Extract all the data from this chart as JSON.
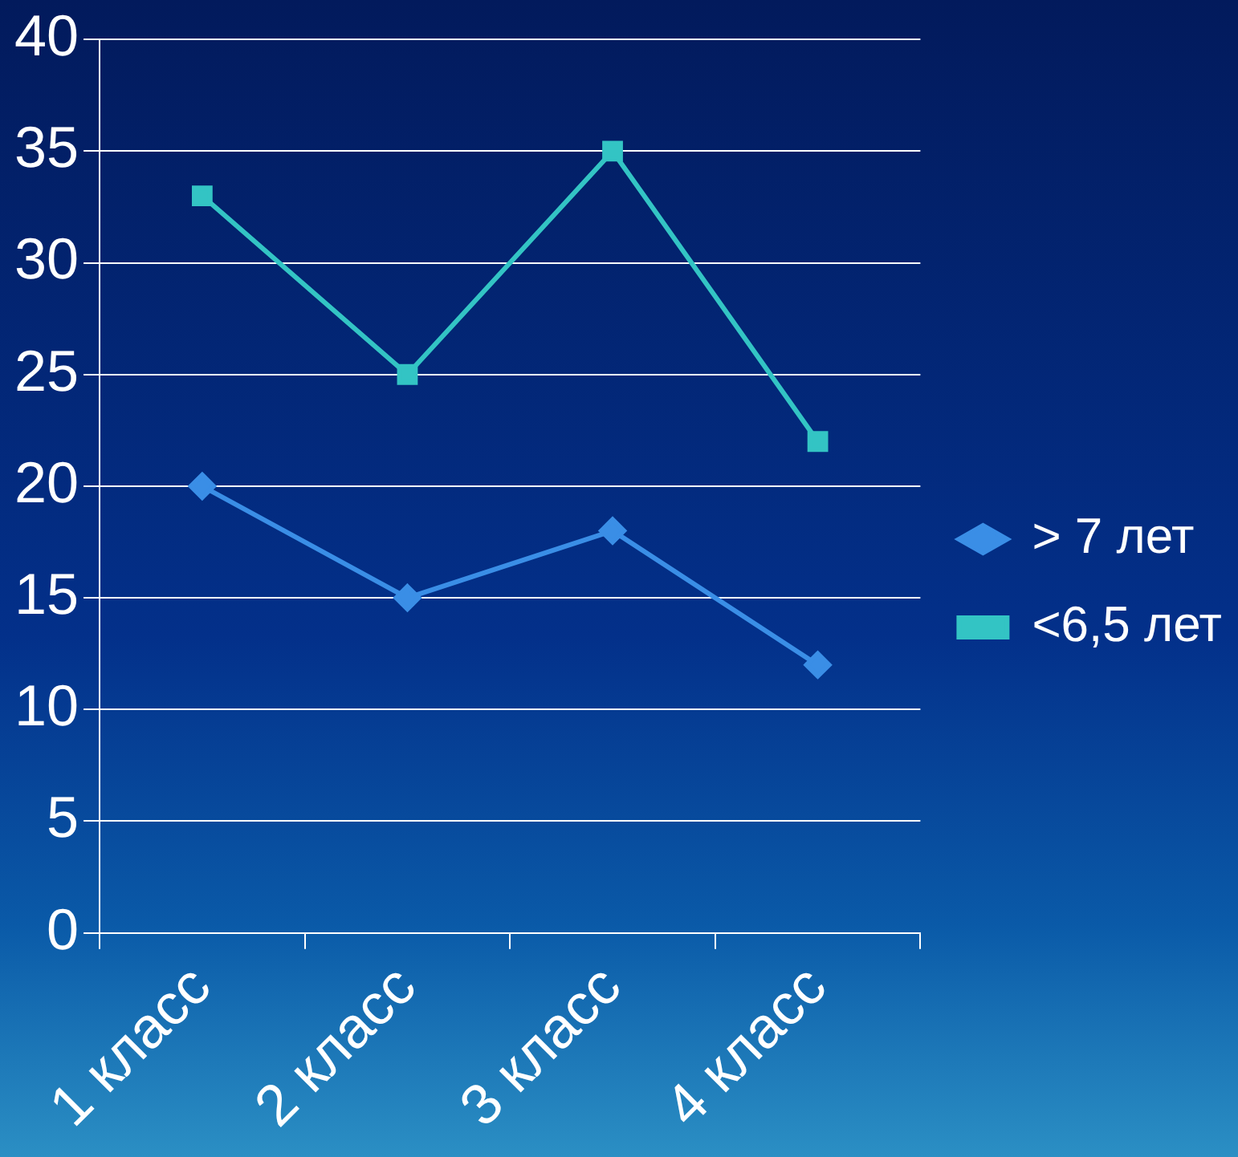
{
  "chart_data": {
    "type": "line",
    "categories": [
      "1 класс",
      "2 класс",
      "3 класс",
      "4 класс"
    ],
    "series": [
      {
        "name": "> 7 лет",
        "color": "#3a8ee6",
        "values": [
          20,
          15,
          18,
          12
        ],
        "marker": "diamond"
      },
      {
        "name": "<6,5 лет",
        "color": "#33c4c4",
        "values": [
          33,
          25,
          35,
          22
        ],
        "marker": "square"
      }
    ],
    "ylim": [
      0,
      40
    ],
    "yticks": [
      0,
      5,
      10,
      15,
      20,
      25,
      30,
      35,
      40
    ],
    "grid": "y",
    "legend": "right",
    "line_style": "solid"
  }
}
